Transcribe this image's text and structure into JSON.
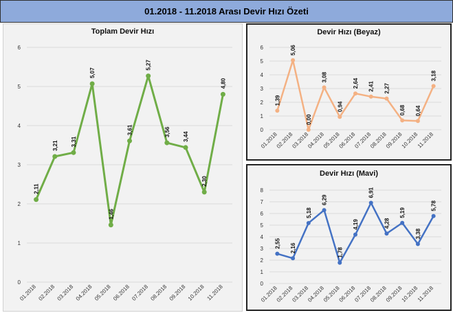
{
  "header": {
    "title": "01.2018 - 11.2018 Arası Devir Hızı Özeti"
  },
  "colors": {
    "header_bg": "#8eaadb",
    "total": "#70ad47",
    "white": "#f4b183",
    "blue": "#4472c4"
  },
  "chart_data": [
    {
      "id": "total",
      "type": "line",
      "title": "Toplam Devir Hızı",
      "categories": [
        "01.2018",
        "02.2018",
        "03.2018",
        "04.2018",
        "05.2018",
        "06.2018",
        "07.2018",
        "08.2018",
        "09.2018",
        "10.2018",
        "11.2018"
      ],
      "values": [
        2.11,
        3.21,
        3.31,
        5.07,
        1.46,
        3.61,
        5.27,
        3.56,
        3.44,
        2.3,
        4.8
      ],
      "value_labels": [
        "2,11",
        "3,21",
        "3,31",
        "5,07",
        "1,46",
        "3,61",
        "5,27",
        "3,56",
        "3,44",
        "2,30",
        "4,80"
      ],
      "yticks": [
        "0",
        "1",
        "2",
        "3",
        "4",
        "5",
        "6"
      ],
      "ylim": [
        0,
        6
      ],
      "grid": true,
      "color": "#70ad47"
    },
    {
      "id": "white",
      "type": "line",
      "title": "Devir Hızı (Beyaz)",
      "categories": [
        "01.2018",
        "02.2018",
        "03.2018",
        "04.2018",
        "05.2018",
        "06.2018",
        "07.2018",
        "08.2018",
        "09.2018",
        "10.2018",
        "11.2018"
      ],
      "values": [
        1.39,
        5.06,
        0.0,
        3.08,
        0.94,
        2.64,
        2.41,
        2.27,
        0.68,
        0.64,
        3.18
      ],
      "value_labels": [
        "1,39",
        "5,06",
        "0,00",
        "3,08",
        "0,94",
        "2,64",
        "2,41",
        "2,27",
        "0,68",
        "0,64",
        "3,18"
      ],
      "yticks": [
        "0",
        "1",
        "2",
        "3",
        "4",
        "5",
        "6"
      ],
      "ylim": [
        0,
        6
      ],
      "grid": true,
      "color": "#f4b183"
    },
    {
      "id": "blue",
      "type": "line",
      "title": "Devir Hızı (Mavi)",
      "categories": [
        "01.2018",
        "02.2018",
        "03.2018",
        "04.2018",
        "05.2018",
        "06.2018",
        "07.2018",
        "08.2018",
        "09.2018",
        "10.2018",
        "11.2018"
      ],
      "values": [
        2.55,
        2.16,
        5.18,
        6.29,
        1.78,
        4.19,
        6.91,
        4.28,
        5.19,
        3.38,
        5.78
      ],
      "value_labels": [
        "2,55",
        "2,16",
        "5,18",
        "6,29",
        "1,78",
        "4,19",
        "6,91",
        "4,28",
        "5,19",
        "3,38",
        "5,78"
      ],
      "yticks": [
        "0",
        "1",
        "2",
        "3",
        "4",
        "5",
        "6",
        "7",
        "8"
      ],
      "ylim": [
        0,
        8
      ],
      "grid": true,
      "color": "#4472c4"
    }
  ]
}
